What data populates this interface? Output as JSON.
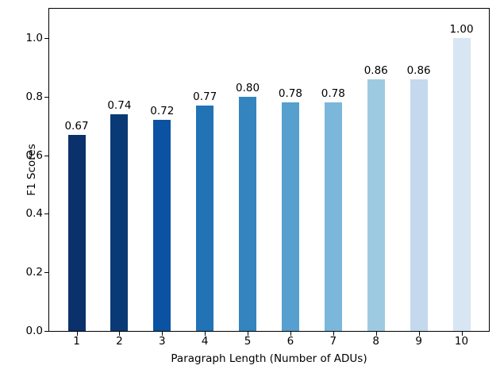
{
  "figure": {
    "background_color": "#ffffff",
    "axis_color": "#000000",
    "text_color": "#000000"
  },
  "chart_data": {
    "type": "bar",
    "title": "",
    "xlabel": "Paragraph Length (Number of ADUs)",
    "ylabel": "F1 Scores",
    "categories": [
      "1",
      "2",
      "3",
      "4",
      "5",
      "6",
      "7",
      "8",
      "9",
      "10"
    ],
    "values": [
      0.67,
      0.74,
      0.72,
      0.77,
      0.8,
      0.78,
      0.78,
      0.86,
      0.86,
      1.0
    ],
    "value_labels": [
      "0.67",
      "0.74",
      "0.72",
      "0.77",
      "0.80",
      "0.78",
      "0.78",
      "0.86",
      "0.86",
      "1.00"
    ],
    "bar_colors": [
      "#0a316b",
      "#0a3a76",
      "#0b53a2",
      "#2272b6",
      "#3484bf",
      "#569fce",
      "#7bb6db",
      "#9ecae1",
      "#c4d9ee",
      "#d8e5f3"
    ],
    "ylim": [
      0,
      1.1
    ],
    "yticks": [
      "0.0",
      "0.2",
      "0.4",
      "0.6",
      "0.8",
      "1.0"
    ],
    "grid": false,
    "legend": null
  }
}
